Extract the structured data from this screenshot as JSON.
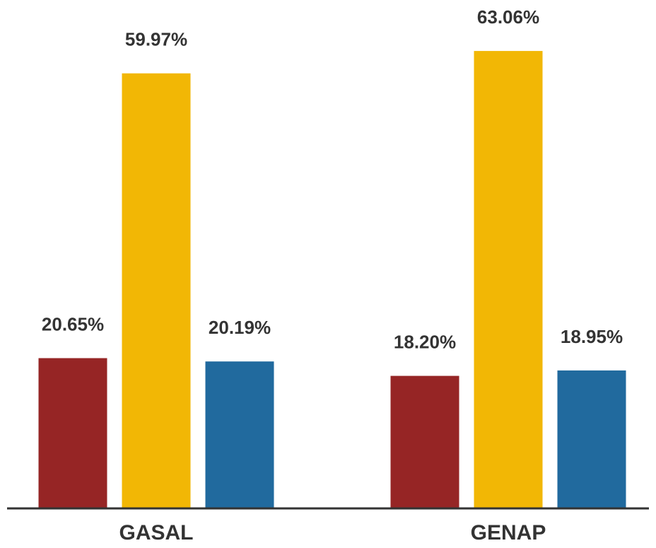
{
  "chart_data": {
    "type": "bar",
    "categories": [
      "GASAL",
      "GENAP"
    ],
    "series": [
      {
        "color": "#962525",
        "values": [
          20.65,
          18.2
        ],
        "value_labels": [
          "20.65%",
          "18.20%"
        ]
      },
      {
        "color": "#f2b705",
        "values": [
          59.97,
          63.06
        ],
        "value_labels": [
          "59.97%",
          "63.06%"
        ]
      },
      {
        "color": "#216a9e",
        "values": [
          20.19,
          18.95
        ],
        "value_labels": [
          "20.19%",
          "18.95%"
        ]
      }
    ],
    "ylim": [
      0,
      70
    ]
  }
}
